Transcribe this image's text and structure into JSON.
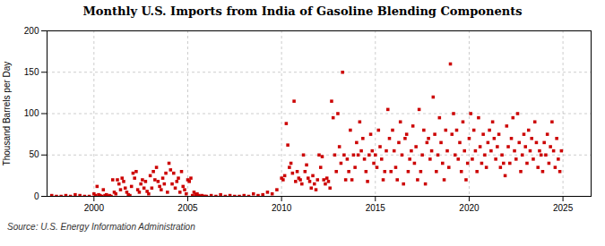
{
  "chart_data": {
    "type": "scatter",
    "title": "Monthly U.S. Imports from India of Gasoline Blending Components",
    "ylabel": "Thousand Barrels per Day",
    "source": "Source: U.S. Energy Information Administration",
    "color": "#CC0000",
    "marker": "square",
    "grid": true,
    "xlim": [
      1997.5,
      2026.5
    ],
    "xticks": [
      2000,
      2005,
      2010,
      2015,
      2020,
      2025
    ],
    "ylim": [
      0,
      200
    ],
    "yticks": [
      0,
      50,
      100,
      150,
      200
    ],
    "x": [
      1997.75,
      1998.0,
      1998.25,
      1998.5,
      1998.75,
      1999.0,
      1999.25,
      1999.5,
      1999.75,
      2000.0,
      2000.083,
      2000.167,
      2000.25,
      2000.333,
      2000.417,
      2000.5,
      2000.583,
      2000.667,
      2000.75,
      2000.833,
      2000.917,
      2001.0,
      2001.083,
      2001.167,
      2001.25,
      2001.333,
      2001.417,
      2001.5,
      2001.583,
      2001.667,
      2001.75,
      2001.833,
      2001.917,
      2002.0,
      2002.083,
      2002.167,
      2002.25,
      2002.333,
      2002.417,
      2002.5,
      2002.583,
      2002.667,
      2002.75,
      2002.833,
      2002.917,
      2003.0,
      2003.083,
      2003.167,
      2003.25,
      2003.333,
      2003.417,
      2003.5,
      2003.583,
      2003.667,
      2003.75,
      2003.833,
      2003.917,
      2004.0,
      2004.083,
      2004.167,
      2004.25,
      2004.333,
      2004.417,
      2004.5,
      2004.583,
      2004.667,
      2004.75,
      2004.833,
      2004.917,
      2005.0,
      2005.083,
      2005.167,
      2005.25,
      2005.333,
      2005.417,
      2005.5,
      2005.583,
      2005.667,
      2005.75,
      2005.833,
      2005.917,
      2006.0,
      2006.25,
      2006.5,
      2006.75,
      2007.0,
      2007.25,
      2007.5,
      2007.75,
      2008.0,
      2008.25,
      2008.5,
      2008.75,
      2009.0,
      2009.25,
      2009.5,
      2009.75,
      2010.0,
      2010.083,
      2010.167,
      2010.25,
      2010.333,
      2010.417,
      2010.5,
      2010.583,
      2010.667,
      2010.75,
      2010.833,
      2010.917,
      2011.0,
      2011.083,
      2011.167,
      2011.25,
      2011.333,
      2011.417,
      2011.5,
      2011.583,
      2011.667,
      2011.75,
      2011.833,
      2011.917,
      2012.0,
      2012.083,
      2012.167,
      2012.25,
      2012.333,
      2012.417,
      2012.5,
      2012.583,
      2012.667,
      2012.75,
      2012.833,
      2012.917,
      2013.0,
      2013.083,
      2013.167,
      2013.25,
      2013.333,
      2013.417,
      2013.5,
      2013.583,
      2013.667,
      2013.75,
      2013.833,
      2013.917,
      2014.0,
      2014.083,
      2014.167,
      2014.25,
      2014.333,
      2014.417,
      2014.5,
      2014.583,
      2014.667,
      2014.75,
      2014.833,
      2014.917,
      2015.0,
      2015.083,
      2015.167,
      2015.25,
      2015.333,
      2015.417,
      2015.5,
      2015.583,
      2015.667,
      2015.75,
      2015.833,
      2015.917,
      2016.0,
      2016.083,
      2016.167,
      2016.25,
      2016.333,
      2016.417,
      2016.5,
      2016.583,
      2016.667,
      2016.75,
      2016.833,
      2016.917,
      2017.0,
      2017.083,
      2017.167,
      2017.25,
      2017.333,
      2017.417,
      2017.5,
      2017.583,
      2017.667,
      2017.75,
      2017.833,
      2017.917,
      2018.0,
      2018.083,
      2018.167,
      2018.25,
      2018.333,
      2018.417,
      2018.5,
      2018.583,
      2018.667,
      2018.75,
      2018.833,
      2018.917,
      2019.0,
      2019.083,
      2019.167,
      2019.25,
      2019.333,
      2019.417,
      2019.5,
      2019.583,
      2019.667,
      2019.75,
      2019.833,
      2019.917,
      2020.0,
      2020.083,
      2020.167,
      2020.25,
      2020.333,
      2020.417,
      2020.5,
      2020.583,
      2020.667,
      2020.75,
      2020.833,
      2020.917,
      2021.0,
      2021.083,
      2021.167,
      2021.25,
      2021.333,
      2021.417,
      2021.5,
      2021.583,
      2021.667,
      2021.75,
      2021.833,
      2021.917,
      2022.0,
      2022.083,
      2022.167,
      2022.25,
      2022.333,
      2022.417,
      2022.5,
      2022.583,
      2022.667,
      2022.75,
      2022.833,
      2022.917,
      2023.0,
      2023.083,
      2023.167,
      2023.25,
      2023.333,
      2023.417,
      2023.5,
      2023.583,
      2023.667,
      2023.75,
      2023.833,
      2023.917,
      2024.0,
      2024.083,
      2024.167,
      2024.25,
      2024.333,
      2024.417,
      2024.5,
      2024.583,
      2024.667,
      2024.75,
      2024.833,
      2024.917
    ],
    "values": [
      1,
      0,
      0,
      1,
      0,
      2,
      1,
      0,
      0,
      3,
      1,
      12,
      2,
      1,
      0,
      8,
      1,
      2,
      0,
      1,
      0,
      20,
      5,
      3,
      20,
      15,
      8,
      22,
      18,
      10,
      5,
      2,
      1,
      12,
      28,
      22,
      30,
      8,
      5,
      15,
      20,
      10,
      18,
      6,
      3,
      25,
      10,
      30,
      20,
      35,
      18,
      12,
      8,
      22,
      15,
      28,
      5,
      40,
      32,
      15,
      28,
      10,
      18,
      22,
      5,
      30,
      12,
      8,
      3,
      20,
      18,
      22,
      1,
      5,
      2,
      3,
      1,
      0,
      1,
      0,
      0,
      0,
      1,
      0,
      2,
      0,
      1,
      0,
      0,
      1,
      0,
      3,
      1,
      2,
      5,
      3,
      8,
      22,
      20,
      25,
      88,
      62,
      35,
      40,
      28,
      115,
      18,
      30,
      22,
      20,
      15,
      50,
      30,
      38,
      22,
      18,
      10,
      25,
      15,
      8,
      20,
      50,
      35,
      48,
      20,
      15,
      22,
      18,
      10,
      115,
      95,
      50,
      30,
      100,
      60,
      40,
      150,
      50,
      20,
      45,
      30,
      80,
      20,
      50,
      35,
      65,
      50,
      90,
      55,
      70,
      45,
      30,
      18,
      50,
      75,
      55,
      40,
      50,
      35,
      80,
      60,
      45,
      20,
      30,
      55,
      105,
      70,
      30,
      80,
      55,
      35,
      20,
      65,
      90,
      50,
      15,
      70,
      75,
      30,
      45,
      55,
      85,
      40,
      60,
      20,
      105,
      30,
      50,
      80,
      15,
      65,
      70,
      45,
      55,
      120,
      75,
      30,
      50,
      95,
      65,
      40,
      20,
      80,
      55,
      35,
      160,
      75,
      100,
      50,
      80,
      45,
      65,
      30,
      90,
      55,
      20,
      40,
      70,
      100,
      45,
      80,
      55,
      30,
      95,
      60,
      40,
      75,
      50,
      35,
      65,
      80,
      55,
      90,
      70,
      45,
      60,
      75,
      35,
      50,
      40,
      25,
      85,
      60,
      40,
      70,
      95,
      55,
      45,
      100,
      65,
      30,
      50,
      75,
      60,
      40,
      80,
      55,
      70,
      45,
      90,
      65,
      35,
      55,
      50,
      30,
      65,
      50,
      75,
      40,
      60,
      90,
      55,
      35,
      70,
      45,
      30,
      55
    ]
  }
}
